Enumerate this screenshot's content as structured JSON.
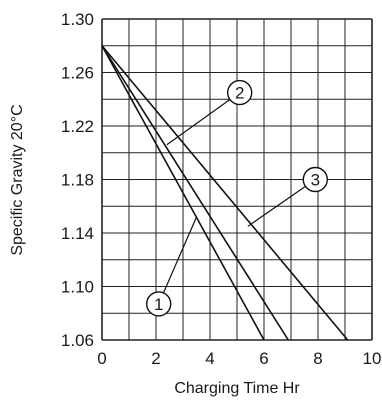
{
  "chart_data": {
    "type": "line",
    "xlabel": "Charging Time Hr",
    "ylabel": "Specific Gravity 20°C",
    "xlim": [
      0,
      10
    ],
    "ylim": [
      1.06,
      1.3
    ],
    "grid": true,
    "x_ticks": [
      0,
      2,
      4,
      6,
      8,
      10
    ],
    "x_tick_labels": [
      "0",
      "2",
      "4",
      "6",
      "8",
      "10"
    ],
    "y_ticks": [
      1.06,
      1.1,
      1.14,
      1.18,
      1.22,
      1.26,
      1.3
    ],
    "y_tick_labels": [
      "1.06",
      "1.10",
      "1.14",
      "1.18",
      "1.22",
      "1.26",
      "1.30"
    ],
    "series": [
      {
        "callout": "1",
        "x": [
          0,
          6
        ],
        "y": [
          1.28,
          1.06
        ]
      },
      {
        "callout": "2",
        "x": [
          0,
          6.9
        ],
        "y": [
          1.28,
          1.06
        ]
      },
      {
        "callout": "3",
        "x": [
          0,
          9.1
        ],
        "y": [
          1.28,
          1.06
        ]
      }
    ],
    "callouts": [
      {
        "label": "1",
        "circle": [
          2.1,
          1.087
        ],
        "target": [
          3.5,
          1.152
        ]
      },
      {
        "label": "2",
        "circle": [
          5.1,
          1.245
        ],
        "target": [
          2.4,
          1.206
        ]
      },
      {
        "label": "3",
        "circle": [
          7.9,
          1.18
        ],
        "target": [
          5.4,
          1.145
        ]
      }
    ]
  }
}
